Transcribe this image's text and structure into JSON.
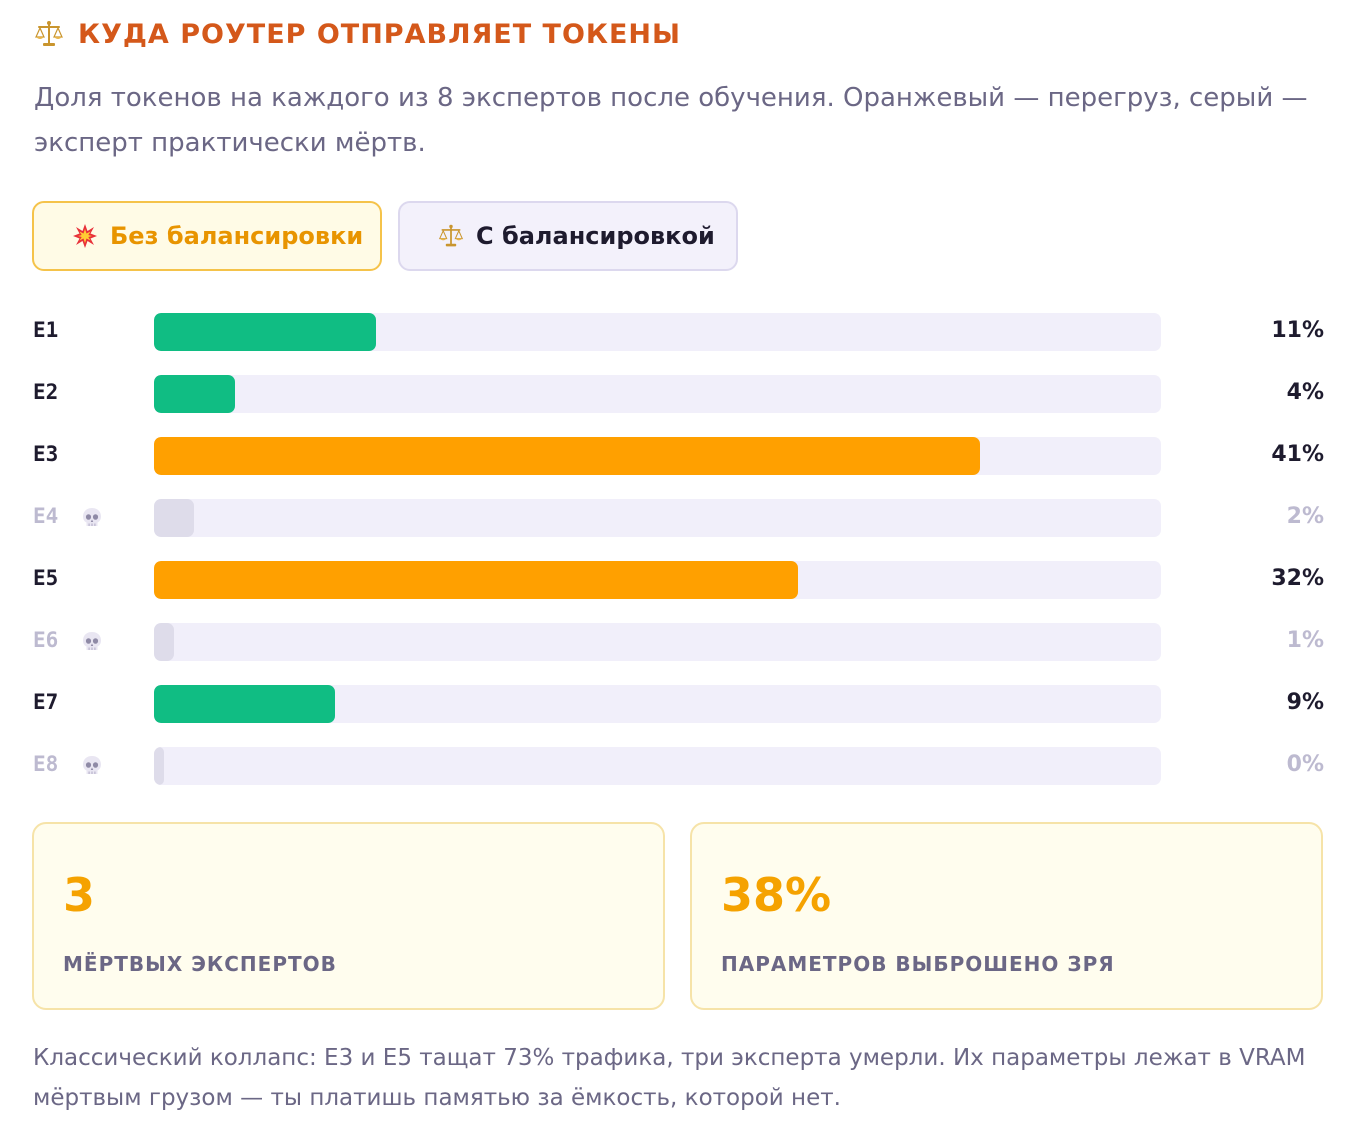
{
  "header": {
    "icon": "balance-scale-icon",
    "title": "КУДА РОУТЕР ОТПРАВЛЯЕТ ТОКЕНЫ",
    "subtitle": "Доля токенов на каждого из 8 экспертов после обучения. Оранжевый — перегруз, серый — эксперт практически мёртв."
  },
  "tabs": [
    {
      "label": "Без балансировки",
      "icon": "collision-icon",
      "active": true
    },
    {
      "label": "С балансировкой",
      "icon": "balance-scale-icon",
      "active": false
    }
  ],
  "colors": {
    "normal": "#10bd83",
    "overloaded": "#ffa000",
    "dead": "#dedcea",
    "track": "#f1effa"
  },
  "chart_data": {
    "type": "bar",
    "orientation": "horizontal",
    "categories": [
      "E1",
      "E2",
      "E3",
      "E4",
      "E5",
      "E6",
      "E7",
      "E8"
    ],
    "values": [
      11,
      4,
      41,
      2,
      32,
      1,
      9,
      0
    ],
    "value_labels": [
      "11%",
      "4%",
      "41%",
      "2%",
      "32%",
      "1%",
      "9%",
      "0%"
    ],
    "status": [
      "normal",
      "normal",
      "overloaded",
      "dead",
      "overloaded",
      "dead",
      "normal",
      "dead"
    ],
    "xlim": [
      0,
      50
    ],
    "grid": false
  },
  "stats": [
    {
      "value": "3",
      "label": "МЁРТВЫХ ЭКСПЕРТОВ"
    },
    {
      "value": "38%",
      "label": "ПАРАМЕТРОВ ВЫБРОШЕНО ЗРЯ"
    }
  ],
  "footnote": "Классический коллапс: E3 и E5 тащат 73% трафика, три эксперта умерли. Их параметры лежат в VRAM мёртвым грузом — ты платишь памятью за ёмкость, которой нет."
}
